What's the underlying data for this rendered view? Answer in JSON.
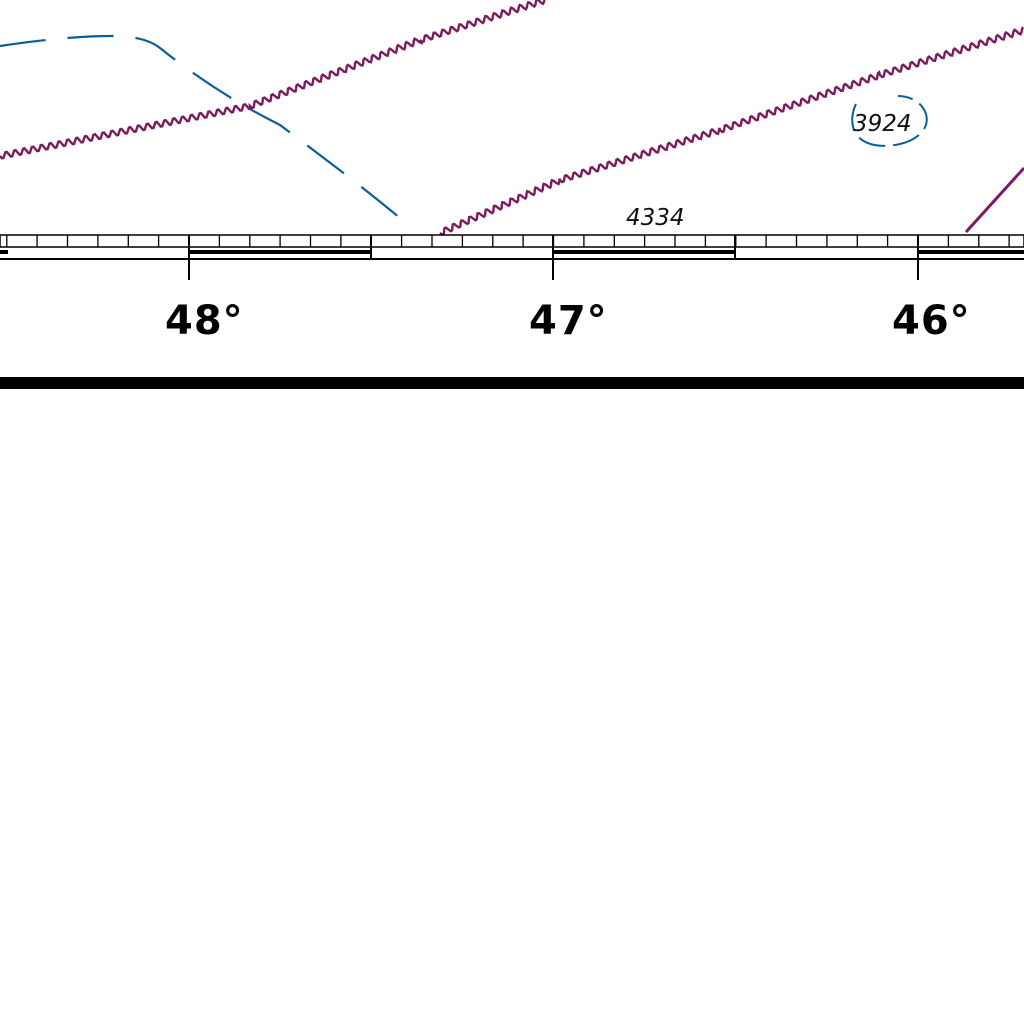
{
  "map": {
    "colors": {
      "contour_blue": "#0b5e96",
      "wavy_line_purple": "#7b1a5c",
      "frame_black": "#000000",
      "background": "#ffffff"
    },
    "depth_soundings": [
      {
        "id": "sounding-4334",
        "value": "4334"
      },
      {
        "id": "sounding-3924",
        "value": "3924"
      }
    ],
    "longitude_labels": [
      {
        "id": "lon-48",
        "value": "48°"
      },
      {
        "id": "lon-47",
        "value": "47°"
      },
      {
        "id": "lon-46",
        "value": "46°"
      }
    ]
  }
}
